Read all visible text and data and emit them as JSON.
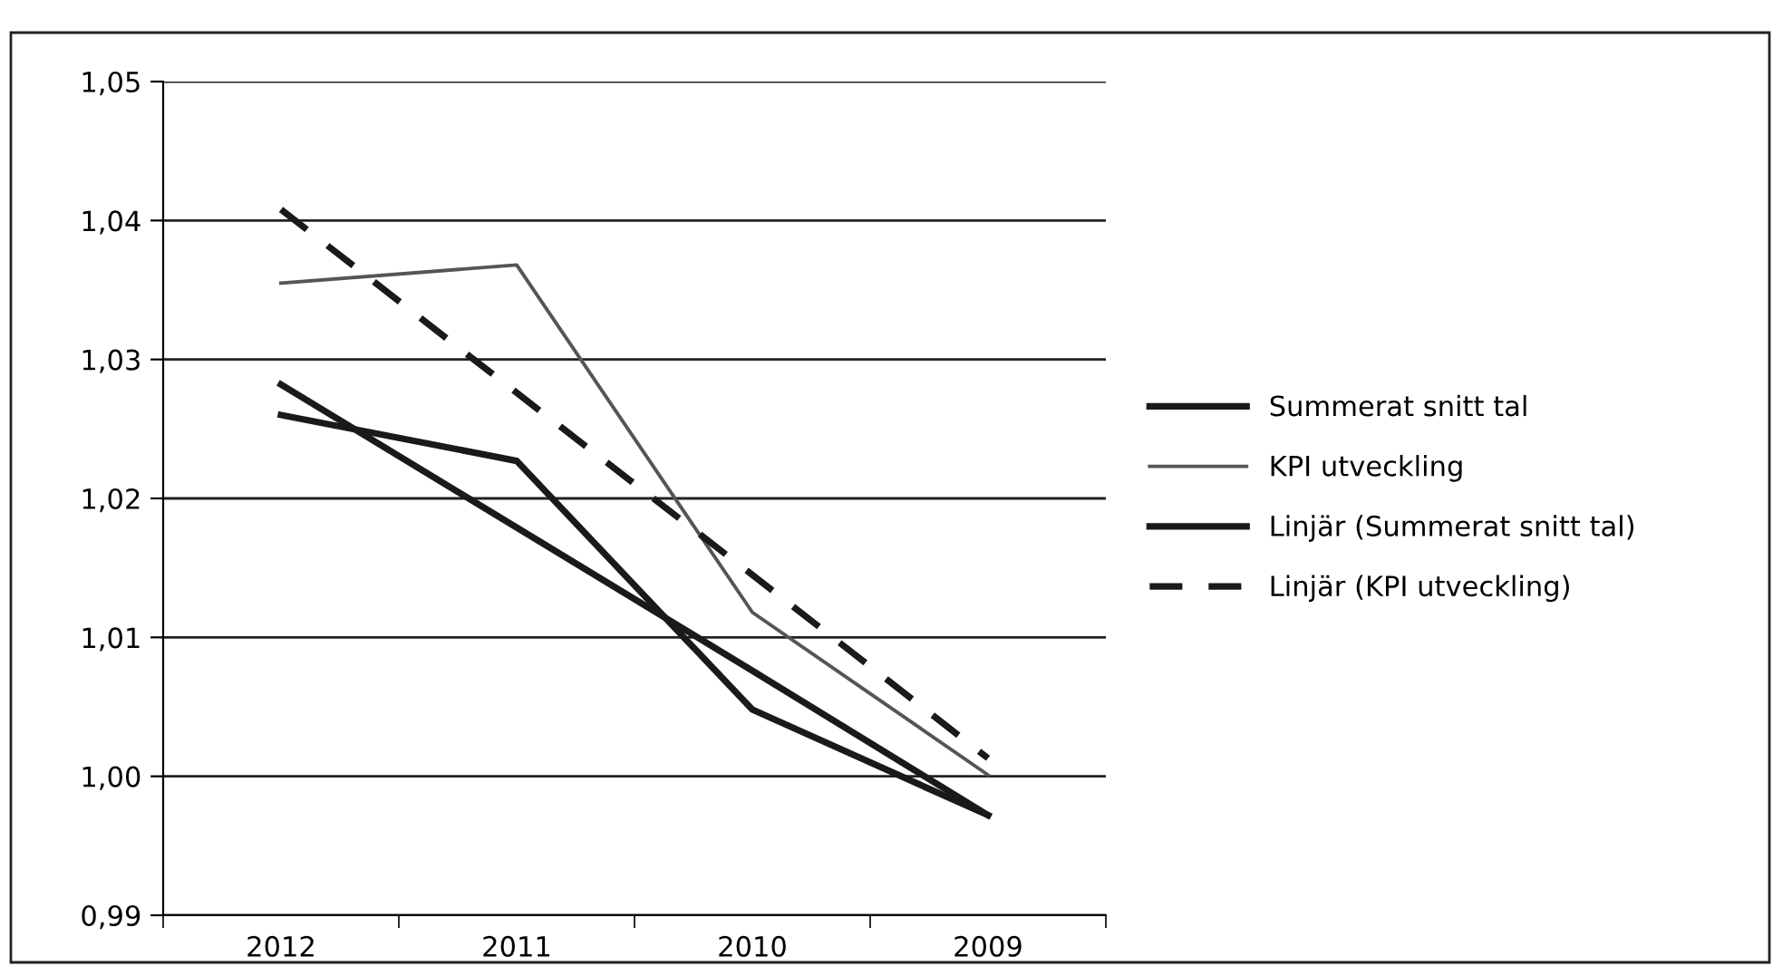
{
  "chart_data": {
    "type": "line",
    "categories": [
      "2012",
      "2011",
      "2010",
      "2009"
    ],
    "ylim": [
      0.99,
      1.05
    ],
    "yticks": [
      {
        "value": 0.99,
        "label": "0,99"
      },
      {
        "value": 1.0,
        "label": "1,00"
      },
      {
        "value": 1.01,
        "label": "1,01"
      },
      {
        "value": 1.02,
        "label": "1,02"
      },
      {
        "value": 1.03,
        "label": "1,03"
      },
      {
        "value": 1.04,
        "label": "1,04"
      },
      {
        "value": 1.05,
        "label": "1,05"
      }
    ],
    "grid": "y",
    "legend": "right",
    "series": [
      {
        "name": "Summerat snitt tal",
        "color": "#1a1a1a",
        "values": [
          1.026,
          1.0227,
          1.0048,
          0.9972
        ],
        "line_style": "solid"
      },
      {
        "name": "KPI utveckling",
        "color": "#555555",
        "values": [
          1.0355,
          1.0368,
          1.0118,
          1.0001
        ],
        "line_style": "solid"
      },
      {
        "name": "Linjär (Summerat snitt tal)",
        "color": "#1a1a1a",
        "values": [
          1.0282,
          1.0179,
          1.0076,
          0.9972
        ],
        "line_style": "solid"
      },
      {
        "name": "Linjär (KPI utveckling)",
        "color": "#1a1a1a",
        "values": [
          1.0408,
          1.0276,
          1.0145,
          1.0013
        ],
        "line_style": "dashed"
      }
    ]
  }
}
